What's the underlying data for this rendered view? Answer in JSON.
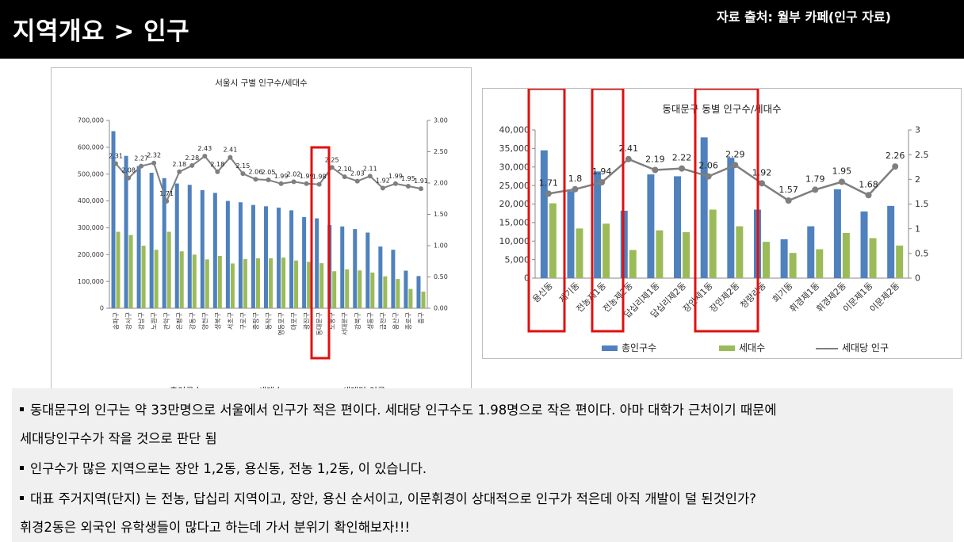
{
  "header": {
    "title": "지역개요 > 인구",
    "source": "자료 출처: 월부 카페(인구 자료)"
  },
  "colors": {
    "blue": "#4f81bd",
    "green": "#9bbb59",
    "gray": "#7f7f7f",
    "highlight": "#e01010"
  },
  "left_chart": {
    "title": "서울시 구별 인구수/세대수",
    "legend": [
      "총인구수",
      "세대수",
      "세대당 인구"
    ],
    "highlight_category": "동대문구"
  },
  "right_chart": {
    "title": "동대문구 동별 인구수/세대수",
    "legend": [
      "총인구수",
      "세대수",
      "세대당 인구"
    ],
    "highlight_categories": [
      "용신동",
      "전농제1동",
      "장안제1동",
      "장안제2동"
    ]
  },
  "chart_data": [
    {
      "type": "bar",
      "title": "서울시 구별 인구수/세대수",
      "categories": [
        "송파구",
        "강서구",
        "강남구",
        "노원구",
        "관악구",
        "은평구",
        "강동구",
        "양천구",
        "성북구",
        "서초구",
        "구로구",
        "중랑구",
        "동작구",
        "영등포구",
        "마포구",
        "광진구",
        "동대문구",
        "도봉구",
        "서대문구",
        "강북구",
        "성동구",
        "금천구",
        "용산구",
        "종로구",
        "중구"
      ],
      "series": [
        {
          "name": "총인구수",
          "axis": "left",
          "values": [
            660000,
            568000,
            530000,
            505000,
            485000,
            465000,
            460000,
            440000,
            430000,
            400000,
            395000,
            385000,
            380000,
            375000,
            365000,
            340000,
            335000,
            310000,
            305000,
            295000,
            282000,
            230000,
            218000,
            140000,
            120000
          ]
        },
        {
          "name": "세대수",
          "axis": "left",
          "values": [
            285000,
            273000,
            233000,
            218000,
            285000,
            212000,
            200000,
            182000,
            195000,
            167000,
            183000,
            186000,
            186000,
            189000,
            178000,
            173000,
            168000,
            138000,
            145000,
            141000,
            133000,
            119000,
            109000,
            72000,
            62000
          ]
        },
        {
          "name": "세대당 인구",
          "axis": "right",
          "values": [
            2.31,
            2.08,
            2.27,
            2.32,
            1.71,
            2.18,
            2.28,
            2.43,
            2.18,
            2.41,
            2.15,
            2.06,
            2.05,
            1.99,
            2.02,
            1.99,
            1.98,
            2.25,
            2.1,
            2.03,
            2.11,
            1.92,
            1.99,
            1.95,
            1.91
          ]
        }
      ],
      "ylim": [
        0,
        700000
      ],
      "ylim_right": [
        0,
        3.0
      ],
      "yticks": [
        "0",
        "100,000",
        "200,000",
        "300,000",
        "400,000",
        "500,000",
        "600,000",
        "700,000"
      ],
      "yticks_right": [
        "0.00",
        "0.50",
        "1.00",
        "1.50",
        "2.00",
        "2.50",
        "3.00"
      ],
      "data_labels": [
        "2.31",
        "2.08",
        "2.27",
        "2.32",
        "1.71",
        "2.18",
        "2.28",
        "2.43",
        "2.18",
        "2.41",
        "2.15",
        "2.06",
        "2.05",
        "1.99",
        "2.02",
        "1.99",
        "1.98",
        "2.25",
        "2.10",
        "2.03",
        "2.11",
        "1.92",
        "1.99",
        "1.95",
        "1.91"
      ],
      "legend_position": "bottom"
    },
    {
      "type": "bar",
      "title": "동대문구 동별 인구수/세대수",
      "categories": [
        "용신동",
        "제기동",
        "전농제1동",
        "전농제2동",
        "답십리제1동",
        "답십리제2동",
        "장안제1동",
        "장안제2동",
        "청량리동",
        "회기동",
        "휘경제1동",
        "휘경제2동",
        "이문제1동",
        "이문제2동"
      ],
      "series": [
        {
          "name": "총인구수",
          "axis": "left",
          "values": [
            34500,
            23500,
            28800,
            18200,
            28000,
            27500,
            38000,
            32500,
            18500,
            10500,
            14000,
            24000,
            18000,
            19500
          ]
        },
        {
          "name": "세대수",
          "axis": "left",
          "values": [
            20200,
            13400,
            14700,
            7600,
            12900,
            12400,
            18500,
            14000,
            9800,
            6800,
            7800,
            12200,
            10800,
            8800
          ]
        },
        {
          "name": "세대당 인구",
          "axis": "right",
          "values": [
            1.71,
            1.8,
            1.94,
            2.41,
            2.19,
            2.22,
            2.06,
            2.29,
            1.92,
            1.57,
            1.79,
            1.95,
            1.68,
            2.26
          ]
        }
      ],
      "ylim": [
        0,
        40000
      ],
      "ylim_right": [
        0,
        3
      ],
      "yticks": [
        "0",
        "5,000",
        "10,000",
        "15,000",
        "20,000",
        "25,000",
        "30,000",
        "35,000",
        "40,000"
      ],
      "yticks_right": [
        "0",
        "0.5",
        "1",
        "1.5",
        "2",
        "2.5",
        "3"
      ],
      "data_labels": [
        "1.71",
        "1.8",
        "1.94",
        "2.41",
        "2.19",
        "2.22",
        "2.06",
        "2.29",
        "1.92",
        "1.57",
        "1.79",
        "1.95",
        "1.68",
        "2.26"
      ],
      "legend_position": "bottom"
    }
  ],
  "notes": [
    "동대문구의 인구는 약 33만명으로 서울에서 인구가 적은 편이다. 세대당 인구수도 1.98명으로 작은 편이다. 아마 대학가 근처이기 때문에",
    "세대당인구수가 작을 것으로 판단 됨",
    "인구수가 많은 지역으로는 장안 1,2동, 용신동, 전농 1,2동, 이 있습니다.",
    "대표 주거지역(단지) 는 전농, 답십리 지역이고, 장안, 용신 순서이고, 이문휘경이 상대적으로 인구가 적은데 아직 개발이 덜 된것인가?",
    "휘경2동은 외국인 유학생들이 많다고 하는데 가서 분위기 확인해보자!!!"
  ]
}
